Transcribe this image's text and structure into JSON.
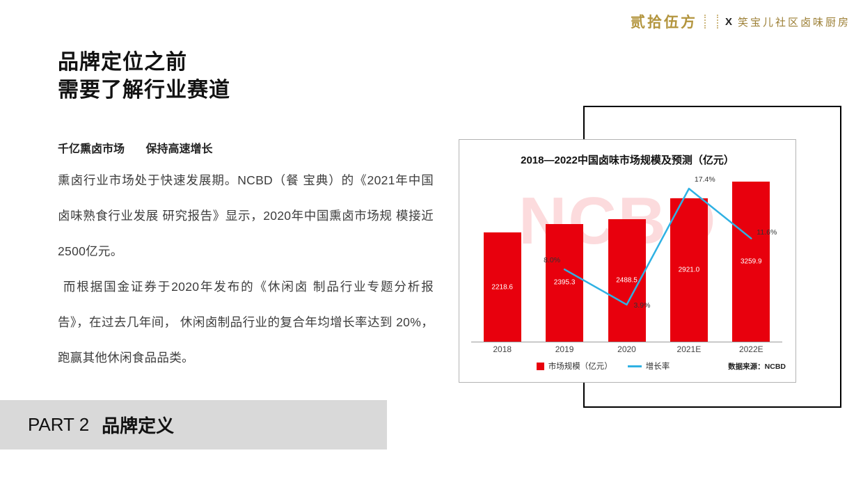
{
  "colors": {
    "brand_gold": "#b3953e",
    "bar_red": "#e8000d",
    "line_blue": "#2fb1e3",
    "banner_gray": "#d9d9d9"
  },
  "logo": {
    "brand": "贰拾伍方",
    "separator": "X",
    "partner": "笑宝儿社区卤味厨房"
  },
  "headline": {
    "line1": "品牌定位之前",
    "line2": "需要了解行业赛道"
  },
  "intro": {
    "subtitle_left": "千亿熏卤市场",
    "subtitle_right": "保持高速增长",
    "paragraph1": "熏卤行业市场处于快速发展期。NCBD（餐 宝典）的《2021年中国卤味熟食行业发展 研究报告》显示，2020年中国熏卤市场规 模接近2500亿元。",
    "paragraph2": "而根据国金证券于2020年发布的《休闲卤 制品行业专题分析报告》，在过去几年间， 休闲卤制品行业的复合年均增长率达到 20%，跑赢其他休闲食品品类。"
  },
  "part_banner": {
    "label": "PART 2",
    "title": "品牌定义"
  },
  "chart_data": {
    "type": "bar",
    "title": "2018—2022中国卤味市场规模及预测（亿元）",
    "categories": [
      "2018",
      "2019",
      "2020",
      "2021E",
      "2022E"
    ],
    "series": [
      {
        "name": "市场规模（亿元）",
        "type": "bar",
        "color": "#e8000d",
        "values": [
          2218.6,
          2395.3,
          2488.5,
          2921.0,
          3259.9
        ],
        "value_labels": [
          "2218.6",
          "2395.3",
          "2488.5",
          "2921.0",
          "3259.9"
        ]
      },
      {
        "name": "增长率",
        "type": "line",
        "color": "#2fb1e3",
        "values": [
          null,
          8.0,
          3.9,
          17.4,
          11.6
        ],
        "value_labels": [
          "",
          "8.0%",
          "3.9%",
          "17.4%",
          "11.6%"
        ]
      }
    ],
    "ylim": [
      0,
      3400
    ],
    "y2lim": [
      0,
      20
    ],
    "grid": false,
    "legend_position": "bottom",
    "source": "数据来源：NCBD",
    "watermark": "NCBD"
  }
}
